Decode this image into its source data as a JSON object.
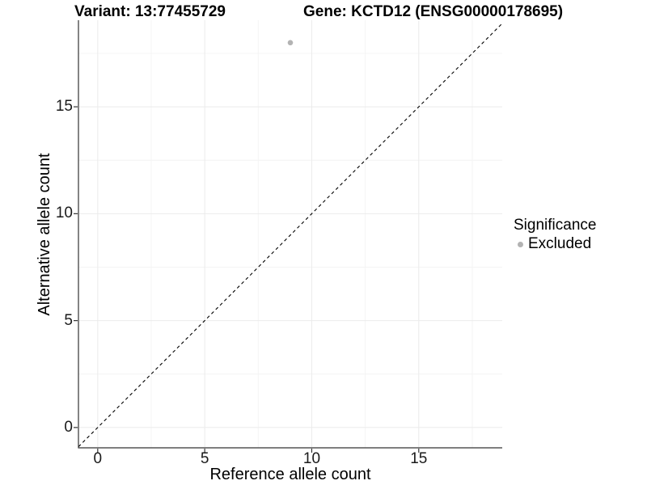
{
  "chart_data": {
    "type": "scatter",
    "title_left": "Variant: 13:77455729",
    "title_right": "Gene: KCTD12 (ENSG00000178695)",
    "xlabel": "Reference allele count",
    "ylabel": "Alternative allele count",
    "xlim": [
      -0.9,
      18.9
    ],
    "ylim": [
      -0.95,
      19.05
    ],
    "x_ticks": [
      0,
      5,
      10,
      15
    ],
    "y_ticks": [
      0,
      5,
      10,
      15
    ],
    "x_minor_ticks": [
      2.5,
      7.5,
      12.5,
      17.5
    ],
    "y_minor_ticks": [
      2.5,
      7.5,
      12.5,
      17.5
    ],
    "grid": true,
    "series": [
      {
        "name": "Excluded",
        "color": "#b3b3b3",
        "points": [
          {
            "x": 9,
            "y": 18
          }
        ]
      }
    ],
    "reference_line": {
      "slope": 1,
      "intercept": 0,
      "style": "dashed",
      "color": "#000000",
      "meaning": "identity line y = x"
    },
    "legend": {
      "title": "Significance",
      "position": "right",
      "items": [
        {
          "label": "Excluded",
          "color": "#b3b3b3"
        }
      ]
    },
    "colors": {
      "background": "#ffffff",
      "grid_major": "#ebebeb",
      "grid_minor": "#f4f4f4",
      "axis_line": "#333333",
      "tick_mark": "#333333",
      "tick_text": "#1a1a1a",
      "point": "#b3b3b3"
    }
  }
}
